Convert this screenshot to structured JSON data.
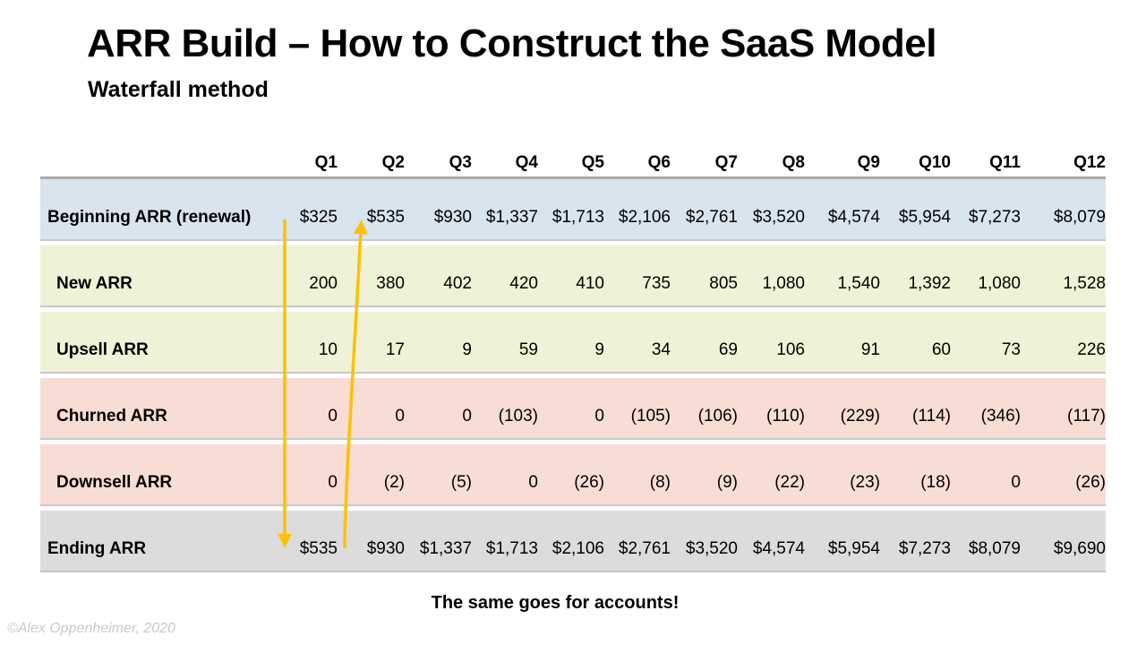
{
  "slide": {
    "title": "ARR Build – How to Construct the SaaS Model",
    "subtitle": "Waterfall method",
    "footnote": "The same goes for accounts!",
    "credit": "©Alex Oppenheimer, 2020"
  },
  "table": {
    "quarter_headers": [
      "Q1",
      "Q2",
      "Q3",
      "Q4",
      "Q5",
      "Q6",
      "Q7",
      "Q8",
      "Q9",
      "Q10",
      "Q11",
      "Q12"
    ],
    "rows": [
      {
        "label": "Beginning ARR (renewal)",
        "band": "blue",
        "indent": false,
        "values": [
          "$325",
          "$535",
          "$930",
          "$1,337",
          "$1,713",
          "$2,106",
          "$2,761",
          "$3,520",
          "$4,574",
          "$5,954",
          "$7,273",
          "$8,079"
        ]
      },
      {
        "label": "New ARR",
        "band": "green",
        "indent": true,
        "values": [
          "200",
          "380",
          "402",
          "420",
          "410",
          "735",
          "805",
          "1,080",
          "1,540",
          "1,392",
          "1,080",
          "1,528"
        ]
      },
      {
        "label": "Upsell ARR",
        "band": "green",
        "indent": true,
        "values": [
          "10",
          "17",
          "9",
          "59",
          "9",
          "34",
          "69",
          "106",
          "91",
          "60",
          "73",
          "226"
        ]
      },
      {
        "label": "Churned ARR",
        "band": "pink",
        "indent": true,
        "values": [
          "0",
          "0",
          "0",
          "(103)",
          "0",
          "(105)",
          "(106)",
          "(110)",
          "(229)",
          "(114)",
          "(346)",
          "(117)"
        ]
      },
      {
        "label": "Downsell ARR",
        "band": "pink",
        "indent": true,
        "values": [
          "0",
          "(2)",
          "(5)",
          "0",
          "(26)",
          "(8)",
          "(9)",
          "(22)",
          "(23)",
          "(18)",
          "0",
          "(26)"
        ]
      },
      {
        "label": "Ending ARR",
        "band": "gray",
        "indent": false,
        "values": [
          "$535",
          "$930",
          "$1,337",
          "$1,713",
          "$2,106",
          "$2,761",
          "$3,520",
          "$4,574",
          "$5,954",
          "$7,273",
          "$8,079",
          "$9,690"
        ]
      }
    ]
  },
  "annotations": {
    "down_arrow_meaning": "Ending ARR carries down from Beginning ARR plus changes",
    "up_arrow_meaning": "Ending ARR becomes next quarter Beginning ARR"
  },
  "colors": {
    "band_blue": "#d8e4ee",
    "band_green": "#eff2d7",
    "band_pink": "#f8ddd4",
    "band_gray": "#dcdcdc",
    "arrow": "#ffc000",
    "table_top_border": "#a9a9a9",
    "row_border": "#c8c8c8",
    "credit_text": "#c9c9c9"
  }
}
